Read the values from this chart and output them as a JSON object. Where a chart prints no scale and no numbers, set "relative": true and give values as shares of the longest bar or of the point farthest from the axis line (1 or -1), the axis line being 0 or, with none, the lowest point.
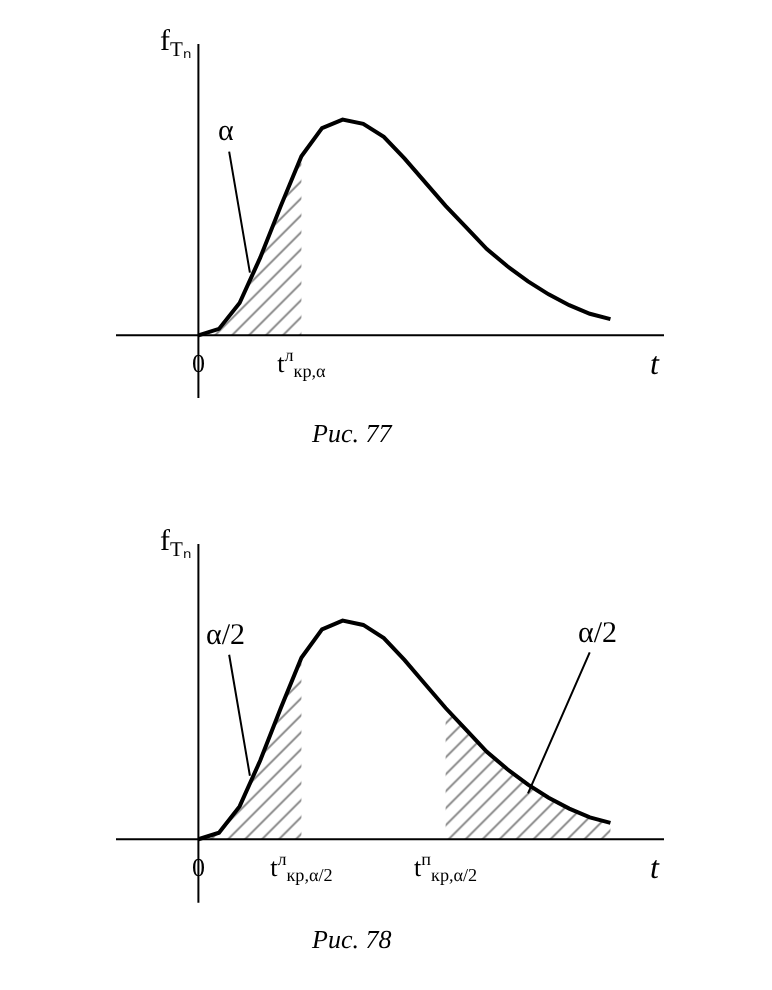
{
  "chart_data": [
    {
      "type": "line",
      "relative": true,
      "title": "Рис. 77",
      "ylabel": "f$_{Tₙ}$",
      "xlabel": "t",
      "marker": "none",
      "categories": [
        "0",
        null,
        null,
        null,
        null,
        "t$^{л}$$_{кр,α}$",
        null,
        null,
        null,
        null,
        null,
        null,
        null,
        null,
        null,
        null,
        null,
        null,
        null,
        null,
        null
      ],
      "series": [
        {
          "color": "#000000",
          "values": [
            0,
            0.03,
            0.15,
            0.36,
            0.6,
            0.83,
            0.96,
            1,
            0.98,
            0.92,
            0.82,
            0.71,
            0.6,
            0.5,
            0.4,
            0.32,
            0.25,
            0.19,
            0.14,
            0.1,
            0.075
          ]
        },
        {
          "type": "area",
          "color": "#000000",
          "values": [
            0,
            0.03,
            0.15,
            0.36,
            0.6,
            0.83,
            null,
            null,
            null,
            null,
            null,
            null,
            null,
            null,
            null,
            null,
            null,
            null,
            null,
            null,
            null
          ]
        }
      ],
      "annotations": [
        "α"
      ]
    },
    {
      "type": "line",
      "relative": true,
      "title": "Рис. 78",
      "ylabel": "f$_{Tₙ}$",
      "xlabel": "t",
      "marker": "none",
      "categories": [
        "0",
        null,
        null,
        null,
        null,
        "t$^{л}$$_{кр,α/2}$",
        null,
        null,
        null,
        null,
        null,
        null,
        "t$^{п}$$_{кр,α/2}$",
        null,
        null,
        null,
        null,
        null,
        null,
        null,
        null
      ],
      "series": [
        {
          "color": "#000000",
          "values": [
            0,
            0.03,
            0.15,
            0.36,
            0.6,
            0.83,
            0.96,
            1,
            0.98,
            0.92,
            0.82,
            0.71,
            0.6,
            0.5,
            0.4,
            0.32,
            0.25,
            0.19,
            0.14,
            0.1,
            0.075
          ]
        },
        {
          "type": "area",
          "color": "#000000",
          "values": [
            0,
            0.03,
            0.15,
            0.36,
            0.6,
            0.83,
            null,
            null,
            null,
            null,
            null,
            null,
            null,
            null,
            null,
            null,
            null,
            null,
            null,
            null,
            null
          ]
        },
        {
          "type": "area",
          "color": "#000000",
          "values": [
            null,
            null,
            null,
            null,
            null,
            null,
            null,
            null,
            null,
            null,
            null,
            null,
            0.6,
            0.5,
            0.4,
            0.32,
            0.25,
            0.19,
            0.14,
            0.1,
            0.075
          ]
        }
      ],
      "annotations": [
        "α/2",
        "α/2"
      ]
    }
  ]
}
